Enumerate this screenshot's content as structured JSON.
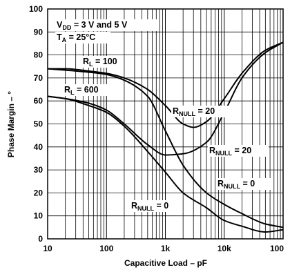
{
  "chart_data": {
    "type": "line",
    "title": "",
    "xlabel": "Capacitive Load – pF",
    "ylabel": "Phase Margin – °",
    "xscale": "log",
    "xlim": [
      10,
      100000
    ],
    "ylim": [
      0,
      100
    ],
    "grid": true,
    "x_tick_labels": [
      "10",
      "100",
      "1k",
      "10k",
      "100"
    ],
    "y_tick_labels": [
      "0",
      "10",
      "20",
      "30",
      "40",
      "50",
      "60",
      "70",
      "80",
      "90",
      "100"
    ],
    "annotations": [
      {
        "main": "V",
        "sub": "DD",
        "rest": " = 3 V and 5 V"
      },
      {
        "main": "T",
        "sub": "A",
        "rest": " = 25°C"
      },
      {
        "main": "R",
        "sub": "L",
        "rest": " = 100"
      },
      {
        "main": "R",
        "sub": "L",
        "rest": " = 600"
      },
      {
        "main": "R",
        "sub": "NULL",
        "rest": " = 20"
      },
      {
        "main": "R",
        "sub": "NULL",
        "rest": " = 20"
      },
      {
        "main": "R",
        "sub": "NULL",
        "rest": " = 0"
      },
      {
        "main": "R",
        "sub": "NULL",
        "rest": " = 0"
      }
    ],
    "series": [
      {
        "x": [
          10,
          20,
          50,
          100,
          200,
          500,
          1000,
          2000,
          3000,
          5000,
          10000,
          20000,
          50000,
          100000
        ],
        "y": [
          74,
          74,
          73,
          72,
          70,
          65,
          58,
          50,
          48.5,
          51,
          61,
          72,
          82,
          85.5
        ]
      },
      {
        "x": [
          10,
          20,
          50,
          100,
          200,
          500,
          1000,
          2000,
          5000,
          10000,
          20000,
          50000,
          100000
        ],
        "y": [
          62,
          61,
          59,
          56,
          50,
          41,
          36.5,
          37,
          42,
          55,
          70,
          81,
          85.5
        ]
      },
      {
        "x": [
          10,
          50,
          100,
          200,
          500,
          1000,
          2000,
          5000,
          10000,
          20000,
          50000,
          100000
        ],
        "y": [
          74,
          72.5,
          71.5,
          69,
          62,
          47,
          32,
          20,
          15,
          11,
          6.5,
          5
        ]
      },
      {
        "x": [
          10,
          20,
          50,
          100,
          200,
          500,
          1000,
          2000,
          5000,
          10000,
          20000,
          50000,
          100000
        ],
        "y": [
          62,
          61,
          58,
          55,
          49,
          38,
          29,
          20,
          13.5,
          8,
          5.5,
          3,
          4
        ]
      }
    ]
  }
}
